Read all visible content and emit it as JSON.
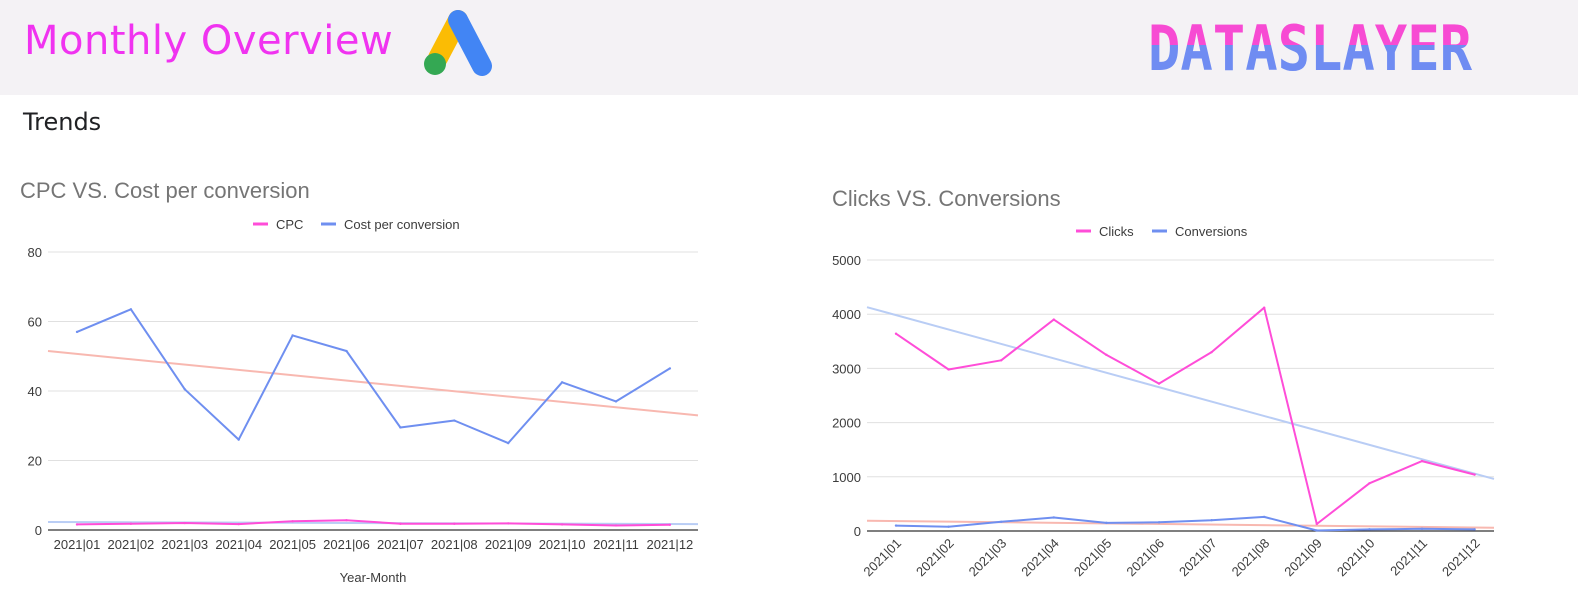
{
  "header": {
    "title": "Monthly Overview",
    "brand": "DATASLAYER",
    "logo_icon": "google-ads-icon",
    "colors": {
      "title": "#f033f0",
      "brand_top": "#f74bd3",
      "brand_bottom": "#6f8cf2",
      "background": "#f4f2f5"
    }
  },
  "section": {
    "title": "Trends"
  },
  "chart_data": [
    {
      "type": "line",
      "title": "CPC VS. Cost per conversion",
      "xlabel": "Year-Month",
      "ylabel": "",
      "ylim": [
        0,
        80
      ],
      "yticks": [
        0,
        20,
        40,
        60,
        80
      ],
      "categories": [
        "2021|01",
        "2021|02",
        "2021|03",
        "2021|04",
        "2021|05",
        "2021|06",
        "2021|07",
        "2021|08",
        "2021|09",
        "2021|10",
        "2021|11",
        "2021|12"
      ],
      "legend_position": "top",
      "grid": true,
      "series": [
        {
          "name": "CPC",
          "color": "#ff4dd8",
          "values": [
            1.6,
            1.8,
            2.0,
            1.7,
            2.5,
            2.8,
            1.8,
            1.8,
            1.9,
            1.6,
            1.3,
            1.5
          ]
        },
        {
          "name": "Cost per conversion",
          "color": "#6f8ff0",
          "values": [
            57,
            63.5,
            40.5,
            26,
            56,
            51.5,
            29.5,
            31.5,
            25,
            42.5,
            37,
            46.5
          ]
        }
      ],
      "trendlines": [
        {
          "series": "Cost per conversion",
          "color": "#f8b8b0",
          "start": 51.5,
          "end": 33
        },
        {
          "series": "CPC",
          "color": "#b9cdf5",
          "start": 2.3,
          "end": 1.7
        }
      ]
    },
    {
      "type": "line",
      "title": "Clicks VS. Conversions",
      "xlabel": "",
      "ylabel": "",
      "ylim": [
        0,
        5000
      ],
      "yticks": [
        0,
        1000,
        2000,
        3000,
        4000,
        5000
      ],
      "categories": [
        "2021|01",
        "2021|02",
        "2021|03",
        "2021|04",
        "2021|05",
        "2021|06",
        "2021|07",
        "2021|08",
        "2021|09",
        "2021|10",
        "2021|11",
        "2021|12"
      ],
      "legend_position": "top",
      "grid": true,
      "series": [
        {
          "name": "Clicks",
          "color": "#ff4dd8",
          "values": [
            3640,
            2980,
            3150,
            3900,
            3250,
            2720,
            3300,
            4120,
            130,
            880,
            1290,
            1040
          ]
        },
        {
          "name": "Conversions",
          "color": "#6f8ff0",
          "values": [
            100,
            80,
            170,
            250,
            150,
            160,
            200,
            260,
            10,
            30,
            40,
            30
          ]
        }
      ],
      "trendlines": [
        {
          "series": "Clicks",
          "color": "#b9cdf5",
          "start": 4130,
          "end": 960
        },
        {
          "series": "Conversions",
          "color": "#f8b8b0",
          "start": 190,
          "end": 60
        }
      ]
    }
  ]
}
